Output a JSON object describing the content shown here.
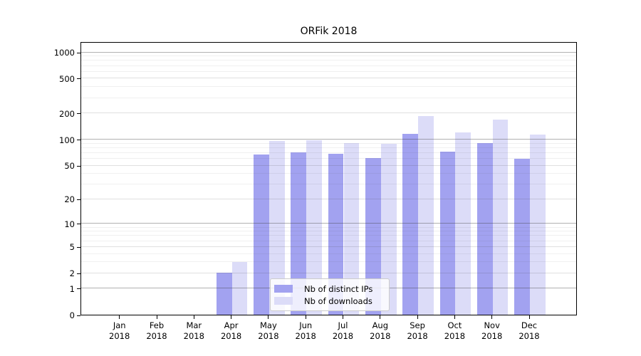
{
  "title": "ORFik 2018",
  "year": "2018",
  "legend": {
    "items": [
      {
        "label": "Nb of distinct IPs",
        "color": "#a2a2f0"
      },
      {
        "label": "Nb of downloads",
        "color": "#dcdcf8"
      }
    ]
  },
  "axes": {
    "ytick_labels": [
      "1000",
      "500",
      "200",
      "100",
      "50",
      "20",
      "10",
      "5",
      "2",
      "1",
      "0"
    ],
    "ytick_values": [
      1000,
      500,
      200,
      100,
      50,
      20,
      10,
      5,
      2,
      1,
      0
    ]
  },
  "chart_data": {
    "type": "bar",
    "title": "ORFik 2018",
    "categories": [
      "Jan 2018",
      "Feb 2018",
      "Mar 2018",
      "Apr 2018",
      "May 2018",
      "Jun 2018",
      "Jul 2018",
      "Aug 2018",
      "Sep 2018",
      "Oct 2018",
      "Nov 2018",
      "Dec 2018"
    ],
    "month_labels": [
      "Jan",
      "Feb",
      "Mar",
      "Apr",
      "May",
      "Jun",
      "Jul",
      "Aug",
      "Sep",
      "Oct",
      "Nov",
      "Dec"
    ],
    "series": [
      {
        "name": "Nb of distinct IPs",
        "color": "#a2a2f0",
        "values": [
          0,
          0,
          0,
          2,
          67,
          71,
          68,
          61,
          116,
          72,
          91,
          59
        ]
      },
      {
        "name": "Nb of downloads",
        "color": "#dcdcf8",
        "values": [
          0,
          0,
          0,
          3,
          95,
          98,
          90,
          88,
          186,
          119,
          169,
          114
        ]
      }
    ],
    "yscale": "log10(value+1)",
    "ylim": [
      0,
      1325
    ],
    "yticks": [
      0,
      1,
      2,
      5,
      10,
      20,
      50,
      100,
      200,
      500,
      1000
    ],
    "grid": "both",
    "major_gridlines": [
      1,
      10,
      100,
      1000
    ],
    "mid_gridlines": [
      2,
      5,
      20,
      50,
      200,
      500
    ],
    "minor_gridlines": [
      3,
      4,
      6,
      7,
      8,
      9,
      30,
      40,
      60,
      70,
      80,
      90,
      300,
      400,
      600,
      700,
      800,
      900
    ],
    "legend_position": "lower-center",
    "background": "#ffffff"
  }
}
